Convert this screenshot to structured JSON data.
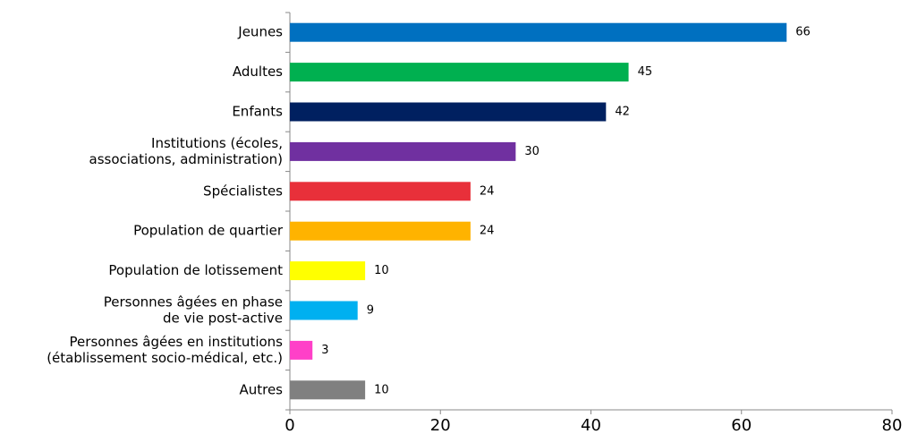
{
  "chart_data": {
    "type": "bar",
    "orientation": "horizontal",
    "categories": [
      [
        "Jeunes"
      ],
      [
        "Adultes"
      ],
      [
        "Enfants"
      ],
      [
        "Institutions (écoles,",
        "associations, administration)"
      ],
      [
        "Spécialistes"
      ],
      [
        "Population de quartier"
      ],
      [
        "Population de lotissement"
      ],
      [
        "Personnes âgées en phase",
        "de vie post-active"
      ],
      [
        "Personnes âgées en institutions",
        "(établissement socio-médical, etc.)"
      ],
      [
        "Autres"
      ]
    ],
    "values": [
      66,
      45,
      42,
      30,
      24,
      24,
      10,
      9,
      3,
      10
    ],
    "colors": [
      "#0070c0",
      "#00b050",
      "#002060",
      "#7030a0",
      "#e8303a",
      "#ffb300",
      "#ffff00",
      "#00b0f0",
      "#ff40c8",
      "#808080"
    ],
    "xlim": [
      0,
      80
    ],
    "xticks": [
      0,
      20,
      40,
      60,
      80
    ],
    "grid": false
  }
}
